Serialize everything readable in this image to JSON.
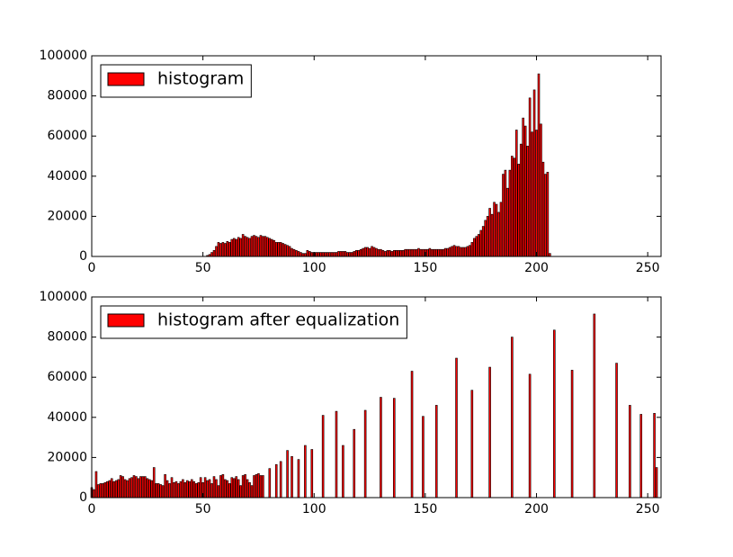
{
  "chart_data": [
    {
      "type": "bar",
      "legend": "upper left",
      "xlim": [
        0,
        256
      ],
      "ylim": [
        0,
        100000
      ],
      "xticks": [
        0,
        50,
        100,
        150,
        200,
        250
      ],
      "yticks": [
        0,
        20000,
        40000,
        60000,
        80000,
        100000
      ],
      "x": [
        52,
        53,
        54,
        55,
        56,
        57,
        58,
        59,
        60,
        61,
        62,
        63,
        64,
        65,
        66,
        67,
        68,
        69,
        70,
        71,
        72,
        73,
        74,
        75,
        76,
        77,
        78,
        79,
        80,
        81,
        82,
        83,
        84,
        85,
        86,
        87,
        88,
        89,
        90,
        91,
        92,
        93,
        94,
        95,
        96,
        97,
        98,
        99,
        100,
        101,
        102,
        103,
        104,
        105,
        106,
        107,
        108,
        109,
        110,
        111,
        112,
        113,
        114,
        115,
        116,
        117,
        118,
        119,
        120,
        121,
        122,
        123,
        124,
        125,
        126,
        127,
        128,
        129,
        130,
        131,
        132,
        133,
        134,
        135,
        136,
        137,
        138,
        139,
        140,
        141,
        142,
        143,
        144,
        145,
        146,
        147,
        148,
        149,
        150,
        151,
        152,
        153,
        154,
        155,
        156,
        157,
        158,
        159,
        160,
        161,
        162,
        163,
        164,
        165,
        166,
        167,
        168,
        169,
        170,
        171,
        172,
        173,
        174,
        175,
        176,
        177,
        178,
        179,
        180,
        181,
        182,
        183,
        184,
        185,
        186,
        187,
        188,
        189,
        190,
        191,
        192,
        193,
        194,
        195,
        196,
        197,
        198,
        199,
        200,
        201,
        202,
        203,
        204,
        205,
        206
      ],
      "series": [
        {
          "name": "histogram",
          "color": "#ff0000",
          "values": [
            500,
            1000,
            2000,
            3000,
            5000,
            7000,
            6500,
            7000,
            6500,
            7500,
            7000,
            8500,
            9000,
            8500,
            9500,
            9000,
            11000,
            10000,
            9500,
            9000,
            10000,
            10500,
            10000,
            9500,
            10500,
            10000,
            10000,
            9500,
            9000,
            8500,
            8000,
            7000,
            7000,
            7000,
            6500,
            6000,
            5500,
            5000,
            4000,
            3500,
            3000,
            2500,
            2000,
            1500,
            1500,
            3000,
            2500,
            2000,
            2000,
            2000,
            2000,
            2000,
            2000,
            2000,
            2000,
            2000,
            2000,
            2000,
            2000,
            2500,
            2500,
            2500,
            2500,
            2000,
            2000,
            2000,
            2500,
            3000,
            3000,
            3500,
            4000,
            4500,
            4500,
            4000,
            5000,
            4500,
            4000,
            3500,
            3500,
            3000,
            2500,
            3000,
            3000,
            2500,
            3000,
            3000,
            3000,
            3000,
            3000,
            3500,
            3500,
            3500,
            3500,
            3500,
            3500,
            4000,
            3500,
            3500,
            3500,
            3500,
            4000,
            3500,
            3500,
            3500,
            3500,
            3500,
            3500,
            4000,
            4000,
            4500,
            5000,
            5500,
            5000,
            5000,
            4500,
            4500,
            4500,
            5000,
            5500,
            7000,
            9000,
            10000,
            11000,
            13000,
            15000,
            18000,
            20000,
            24000,
            21000,
            27000,
            26000,
            22000,
            27000,
            41000,
            43000,
            34000,
            43000,
            50000,
            49000,
            63000,
            46000,
            56000,
            69000,
            65000,
            55000,
            79000,
            62000,
            83000,
            63000,
            91000,
            66000,
            47000,
            41000,
            42000,
            1500
          ]
        }
      ]
    },
    {
      "type": "bar",
      "legend": "upper left",
      "xlim": [
        0,
        256
      ],
      "ylim": [
        0,
        100000
      ],
      "xticks": [
        0,
        50,
        100,
        150,
        200,
        250
      ],
      "yticks": [
        0,
        20000,
        40000,
        60000,
        80000,
        100000
      ],
      "x": [
        0,
        1,
        2,
        3,
        4,
        5,
        6,
        7,
        8,
        9,
        10,
        11,
        12,
        13,
        14,
        15,
        16,
        17,
        18,
        19,
        20,
        21,
        22,
        23,
        24,
        25,
        26,
        27,
        28,
        29,
        30,
        31,
        32,
        33,
        34,
        35,
        36,
        37,
        38,
        39,
        40,
        41,
        42,
        43,
        44,
        45,
        46,
        47,
        48,
        49,
        50,
        51,
        52,
        53,
        54,
        55,
        56,
        57,
        58,
        59,
        60,
        61,
        62,
        63,
        64,
        65,
        66,
        67,
        68,
        69,
        70,
        71,
        72,
        73,
        74,
        75,
        76,
        77,
        80,
        83,
        85,
        88,
        90,
        93,
        96,
        99,
        104,
        110,
        113,
        118,
        123,
        130,
        136,
        144,
        149,
        155,
        164,
        171,
        179,
        189,
        197,
        208,
        216,
        226,
        236,
        242,
        247,
        253,
        254
      ],
      "series": [
        {
          "name": "histogram after equalization",
          "color": "#ff0000",
          "values": [
            5000,
            4000,
            13000,
            6500,
            7000,
            7000,
            7500,
            8000,
            8500,
            9500,
            8000,
            8500,
            9000,
            11000,
            10500,
            9000,
            8500,
            9500,
            10000,
            11000,
            10500,
            9500,
            10500,
            10500,
            10500,
            9500,
            9000,
            8500,
            15000,
            7000,
            7000,
            6500,
            6000,
            11500,
            8500,
            7000,
            10000,
            7500,
            8000,
            7000,
            8000,
            9000,
            7500,
            8500,
            8000,
            9000,
            8000,
            7000,
            7500,
            10000,
            7500,
            10000,
            8500,
            9000,
            7000,
            10500,
            9000,
            6000,
            11000,
            11500,
            9000,
            8500,
            7000,
            10000,
            9500,
            10500,
            9000,
            6000,
            11000,
            11500,
            9000,
            7500,
            6000,
            11000,
            11500,
            12000,
            11000,
            11000,
            14500,
            16500,
            18000,
            23500,
            20500,
            19000,
            26000,
            24000,
            41000,
            43000,
            26000,
            34000,
            43500,
            50000,
            49500,
            63000,
            40500,
            46000,
            69500,
            53500,
            65000,
            80000,
            61500,
            83500,
            63500,
            91500,
            67000,
            46000,
            41500,
            42000,
            15000
          ]
        }
      ]
    }
  ]
}
